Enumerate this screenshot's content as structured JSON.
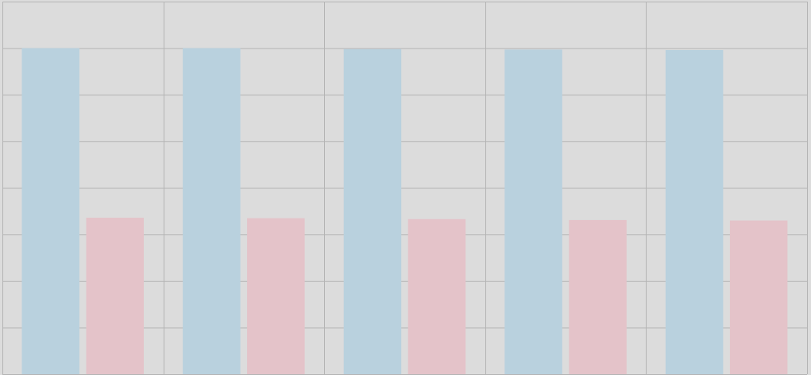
{
  "chart_data": {
    "type": "bar",
    "categories": [
      "",
      "",
      "",
      "",
      ""
    ],
    "series": [
      {
        "color": "#b9d1de",
        "values": [
          7.0,
          7.0,
          6.98,
          6.97,
          6.96
        ]
      },
      {
        "color": "#e4c3c9",
        "values": [
          3.36,
          3.35,
          3.33,
          3.31,
          3.3
        ]
      }
    ],
    "ylim": [
      0,
      8
    ],
    "grid": true,
    "background": "#dcdcdc",
    "grid_color": "#b4b4b4"
  }
}
